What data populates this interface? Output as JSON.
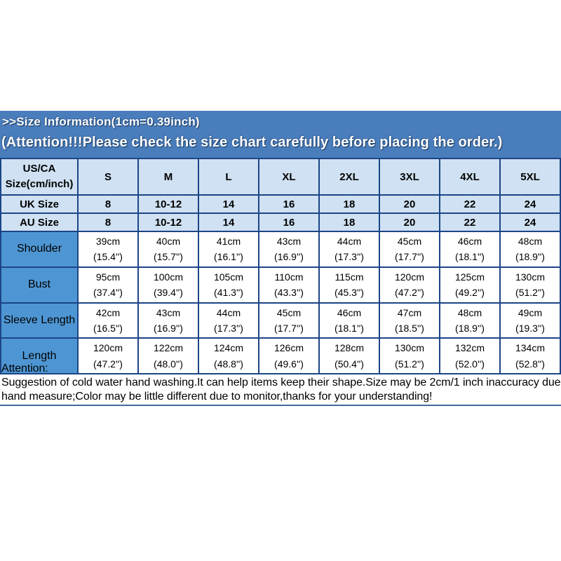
{
  "banner": {
    "line1": ">>Size Information(1cm=0.39inch)",
    "line2": "(Attention!!!Please check the size chart carefully before placing the order.)"
  },
  "table": {
    "corner_label": "US/CA\nSize(cm/inch)",
    "sizes": [
      "S",
      "M",
      "L",
      "XL",
      "2XL",
      "3XL",
      "4XL",
      "5XL"
    ],
    "rows": [
      {
        "label": "UK Size",
        "values": [
          "8",
          "10-12",
          "14",
          "16",
          "18",
          "20",
          "22",
          "24"
        ]
      },
      {
        "label": "AU Size",
        "values": [
          "8",
          "10-12",
          "14",
          "16",
          "18",
          "20",
          "22",
          "24"
        ]
      },
      {
        "label": "Shoulder",
        "values": [
          "39cm\n(15.4'')",
          "40cm\n(15.7'')",
          "41cm\n(16.1'')",
          "43cm\n(16.9'')",
          "44cm\n(17.3'')",
          "45cm\n(17.7'')",
          "46cm\n(18.1'')",
          "48cm\n(18.9'')"
        ]
      },
      {
        "label": "Bust",
        "values": [
          "95cm\n(37.4'')",
          "100cm\n(39.4'')",
          "105cm\n(41.3'')",
          "110cm\n(43.3'')",
          "115cm\n(45.3'')",
          "120cm\n(47.2'')",
          "125cm\n(49.2'')",
          "130cm\n(51.2'')"
        ]
      },
      {
        "label": "Sleeve Length",
        "values": [
          "42cm\n(16.5'')",
          "43cm\n(16.9'')",
          "44cm\n(17.3'')",
          "45cm\n(17.7'')",
          "46cm\n(18.1'')",
          "47cm\n(18.5'')",
          "48cm\n(18.9'')",
          "49cm\n(19.3'')"
        ]
      },
      {
        "label": "Length",
        "values": [
          "120cm\n(47.2'')",
          "122cm\n(48.0'')",
          "124cm\n(48.8'')",
          "126cm\n(49.6'')",
          "128cm\n(50.4'')",
          "130cm\n(51.2'')",
          "132cm\n(52.0'')",
          "134cm\n(52.8'')"
        ]
      }
    ]
  },
  "footer": {
    "title": "Attention:",
    "line1": "Suggestion of cold water hand washing.It can help items keep their shape.Size may be 2cm/1 inch inaccuracy due to",
    "line2": "hand measure;Color may be little different due to monitor,thanks for your understanding!"
  },
  "colors": {
    "banner_bg": "#4a7dbb",
    "light_cell_bg": "#cfe1f2",
    "label_cell_bg": "#4e96d3",
    "table_border": "#1c4587",
    "bottom_rule": "#41699c",
    "banner_text": "#ffffff",
    "body_text": "#000000"
  }
}
